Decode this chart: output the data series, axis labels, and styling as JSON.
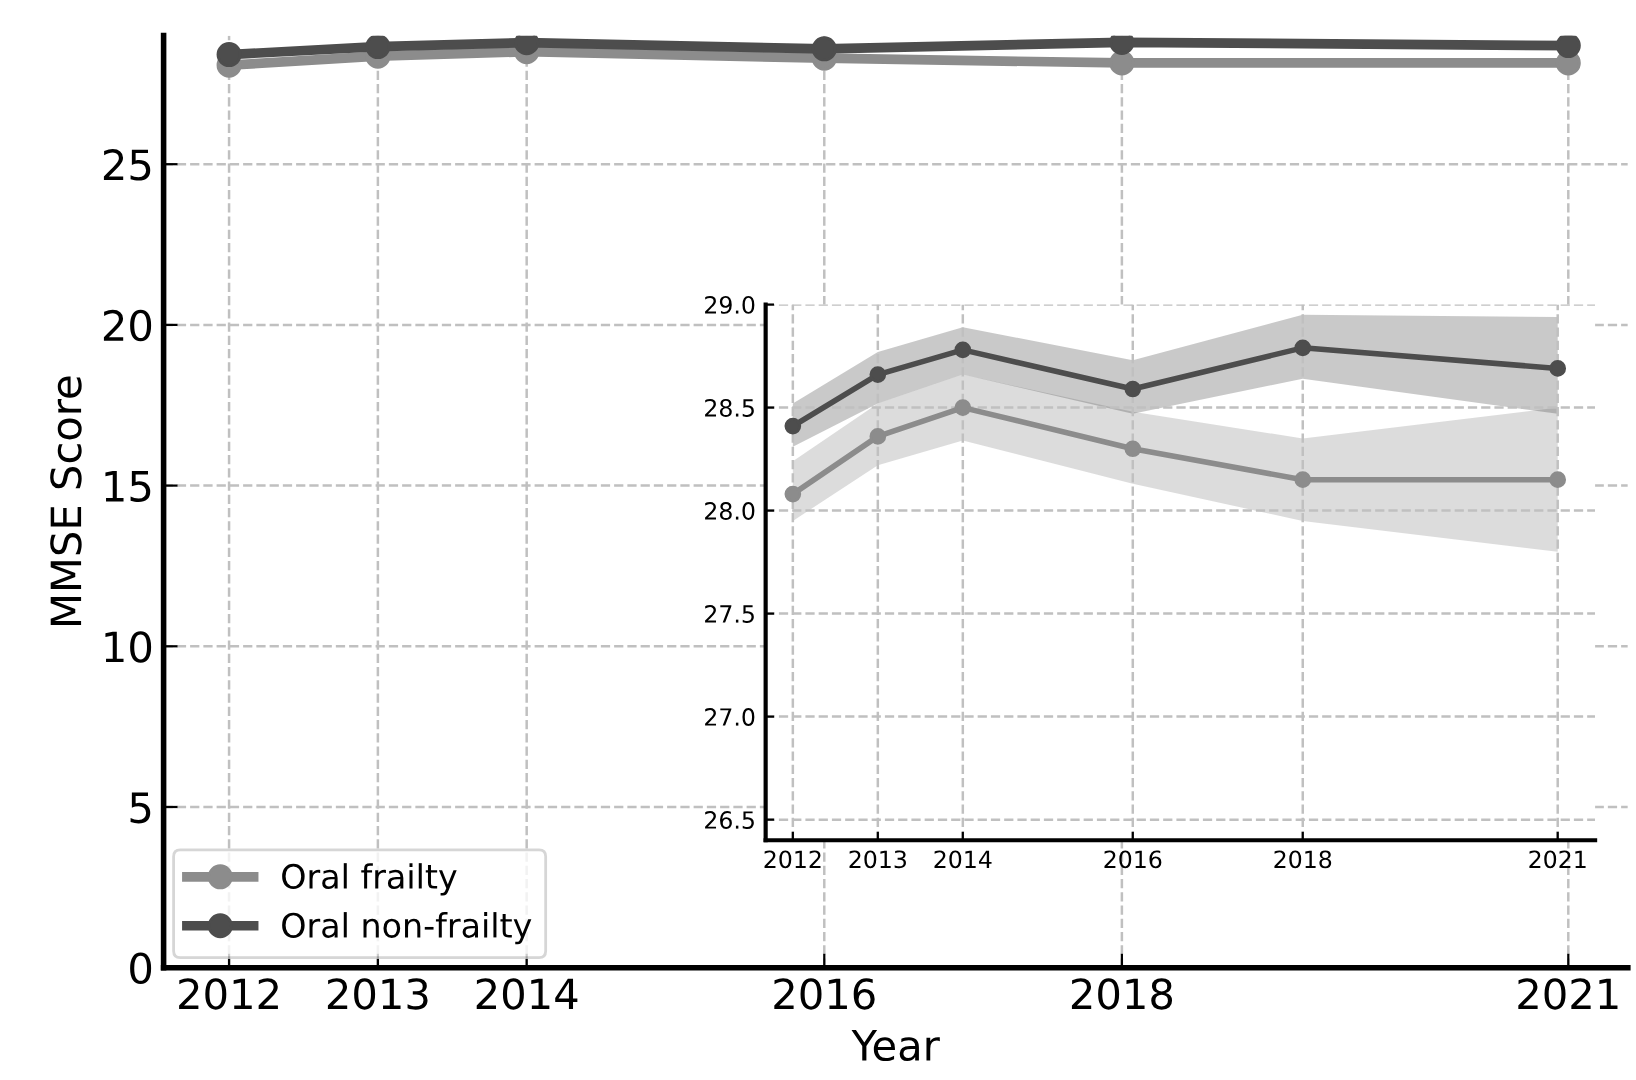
{
  "chart_data": [
    {
      "type": "line",
      "xlabel": "Year",
      "ylabel": "MMSE Score",
      "x": [
        2012,
        2013,
        2014,
        2016,
        2018,
        2021
      ],
      "xlim": [
        2011.56,
        2021.4
      ],
      "xticks": [
        2012,
        2013,
        2014,
        2016,
        2018,
        2021
      ],
      "ylim": [
        0,
        29
      ],
      "yticks": [
        0,
        5,
        10,
        15,
        20,
        25
      ],
      "grid": true,
      "legend": "bottom left",
      "marker": "circle",
      "line_style": "solid",
      "series": [
        {
          "name": "Oral frailty",
          "color": "#8c8c8c",
          "values": [
            28.08,
            28.36,
            28.5,
            28.3,
            28.15,
            28.15
          ]
        },
        {
          "name": "Oral non-frailty",
          "color": "#4d4d4d",
          "values": [
            28.41,
            28.66,
            28.78,
            28.59,
            28.79,
            28.69
          ]
        }
      ]
    },
    {
      "type": "line",
      "x": [
        2012,
        2013,
        2014,
        2016,
        2018,
        2021
      ],
      "xlim": [
        2011.68,
        2021.44
      ],
      "xticks": [
        2012,
        2013,
        2014,
        2016,
        2018,
        2021
      ],
      "ylim": [
        26.4,
        29.0
      ],
      "yticks": [
        {
          "value": 26.5,
          "label": "26.5"
        },
        {
          "value": 27.0,
          "label": "27.0"
        },
        {
          "value": 27.5,
          "label": "27.5"
        },
        {
          "value": 28.0,
          "label": "28.0"
        },
        {
          "value": 28.5,
          "label": "28.5"
        },
        {
          "value": 29.0,
          "label": "29.0"
        }
      ],
      "grid": true,
      "marker": "circle",
      "line_style": "solid",
      "series": [
        {
          "color": "#8c8c8c",
          "values": [
            28.08,
            28.36,
            28.5,
            28.3,
            28.15,
            28.15
          ],
          "lower": [
            27.95,
            28.22,
            28.34,
            28.13,
            27.95,
            27.8
          ],
          "upper": [
            28.24,
            28.52,
            28.66,
            28.48,
            28.35,
            28.5
          ]
        },
        {
          "color": "#4d4d4d",
          "values": [
            28.41,
            28.66,
            28.78,
            28.59,
            28.79,
            28.69
          ],
          "lower": [
            28.31,
            28.52,
            28.66,
            28.47,
            28.64,
            28.47
          ],
          "upper": [
            28.52,
            28.77,
            28.89,
            28.73,
            28.95,
            28.94
          ]
        }
      ]
    }
  ]
}
